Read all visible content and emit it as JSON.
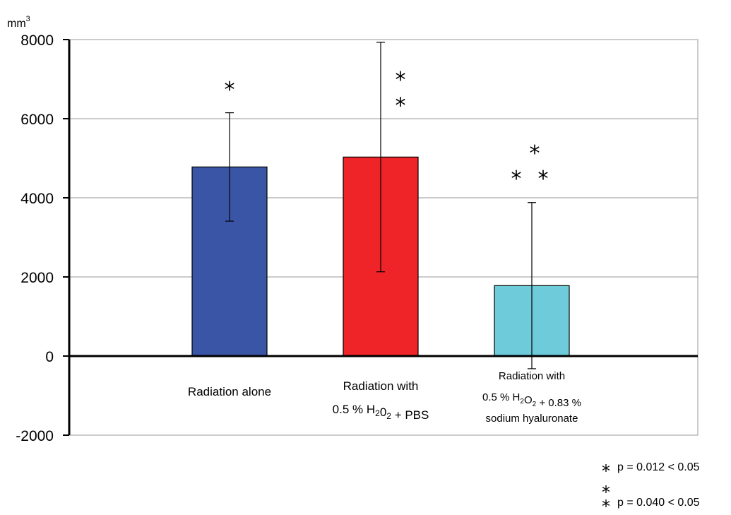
{
  "chart_data": {
    "type": "bar",
    "unit_label": "mm",
    "unit_superscript": "3",
    "ylim": [
      -2000,
      8000
    ],
    "yticks": [
      -2000,
      0,
      2000,
      4000,
      6000,
      8000
    ],
    "grid": true,
    "categories": [
      "Radiation alone",
      "Radiation with 0.5 % H2O2 + PBS",
      "Radiation with 0.5 % H2O2 + 0.83 % sodium hyaluronate"
    ],
    "category_lines": [
      [
        [
          "Radiation alone"
        ]
      ],
      [
        [
          "Radiation with"
        ],
        [
          "0.5 % H",
          {
            "sub": "2"
          },
          "0",
          {
            "sub": "2"
          },
          " + PBS"
        ]
      ],
      [
        [
          "Radiation with"
        ],
        [
          "0.5 % H",
          {
            "sub": "2"
          },
          "O",
          {
            "sub": "2"
          },
          " + 0.83 %"
        ],
        [
          "sodium hyaluronate"
        ]
      ]
    ],
    "values": [
      4780,
      5030,
      1780
    ],
    "error": [
      1370,
      2900,
      2100
    ],
    "colors": [
      "#3A55A6",
      "#EE2428",
      "#6DCBDA"
    ],
    "significance": [
      {
        "category": 0,
        "marks": [
          {
            "symbol": "*",
            "value": 6800
          }
        ]
      },
      {
        "category": 1,
        "marks": [
          {
            "symbol": "*",
            "value": 7050
          },
          {
            "symbol": "*",
            "value": 6400
          }
        ]
      },
      {
        "category": 2,
        "marks": [
          {
            "symbol": "*",
            "value": 5200
          },
          {
            "symbol": "*",
            "value": 4550
          },
          {
            "symbol": "*",
            "value": 4550
          }
        ]
      }
    ],
    "legend": [
      {
        "symbol": "*",
        "text": "p = 0.012 < 0.05"
      },
      {
        "symbol": "**",
        "text": "p = 0.040 < 0.05"
      }
    ],
    "legend_position": "bottom-right"
  }
}
